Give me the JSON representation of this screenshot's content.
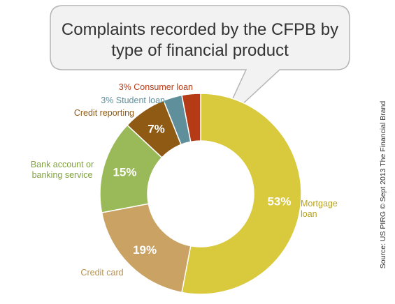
{
  "chart_data": {
    "type": "pie",
    "title_lines": [
      "Complaints recorded by the CFPB by",
      "type of financial product"
    ],
    "slices": [
      {
        "label": "Mortgage loan",
        "label_lines": [
          "Mortgage",
          "loan"
        ],
        "value": 53,
        "value_label": "53%",
        "color": "#d9c93c",
        "label_color": "#b8a21c"
      },
      {
        "label": "Credit card",
        "label_lines": [
          "Credit card"
        ],
        "value": 19,
        "value_label": "19%",
        "color": "#c9a264",
        "label_color": "#b9914f"
      },
      {
        "label": "Bank account or banking service",
        "label_lines": [
          "Bank account or",
          "banking service"
        ],
        "value": 15,
        "value_label": "15%",
        "color": "#9ab958",
        "label_color": "#7fa13c"
      },
      {
        "label": "Credit reporting",
        "label_lines": [
          "Credit reporting"
        ],
        "value": 7,
        "value_label": "7%",
        "color": "#8f5a14",
        "label_color": "#8f5a14"
      },
      {
        "label": "Student loan",
        "label_lines": [
          "3% Student loan"
        ],
        "value": 3,
        "value_label": "",
        "color": "#5e8f9a",
        "label_color": "#5e8f9a"
      },
      {
        "label": "Consumer loan",
        "label_lines": [
          "3% Consumer loan"
        ],
        "value": 3,
        "value_label": "",
        "color": "#b53a16",
        "label_color": "#b53a16"
      }
    ],
    "source": "Source: US PIRG © Sept 2013 The Financial Brand"
  }
}
